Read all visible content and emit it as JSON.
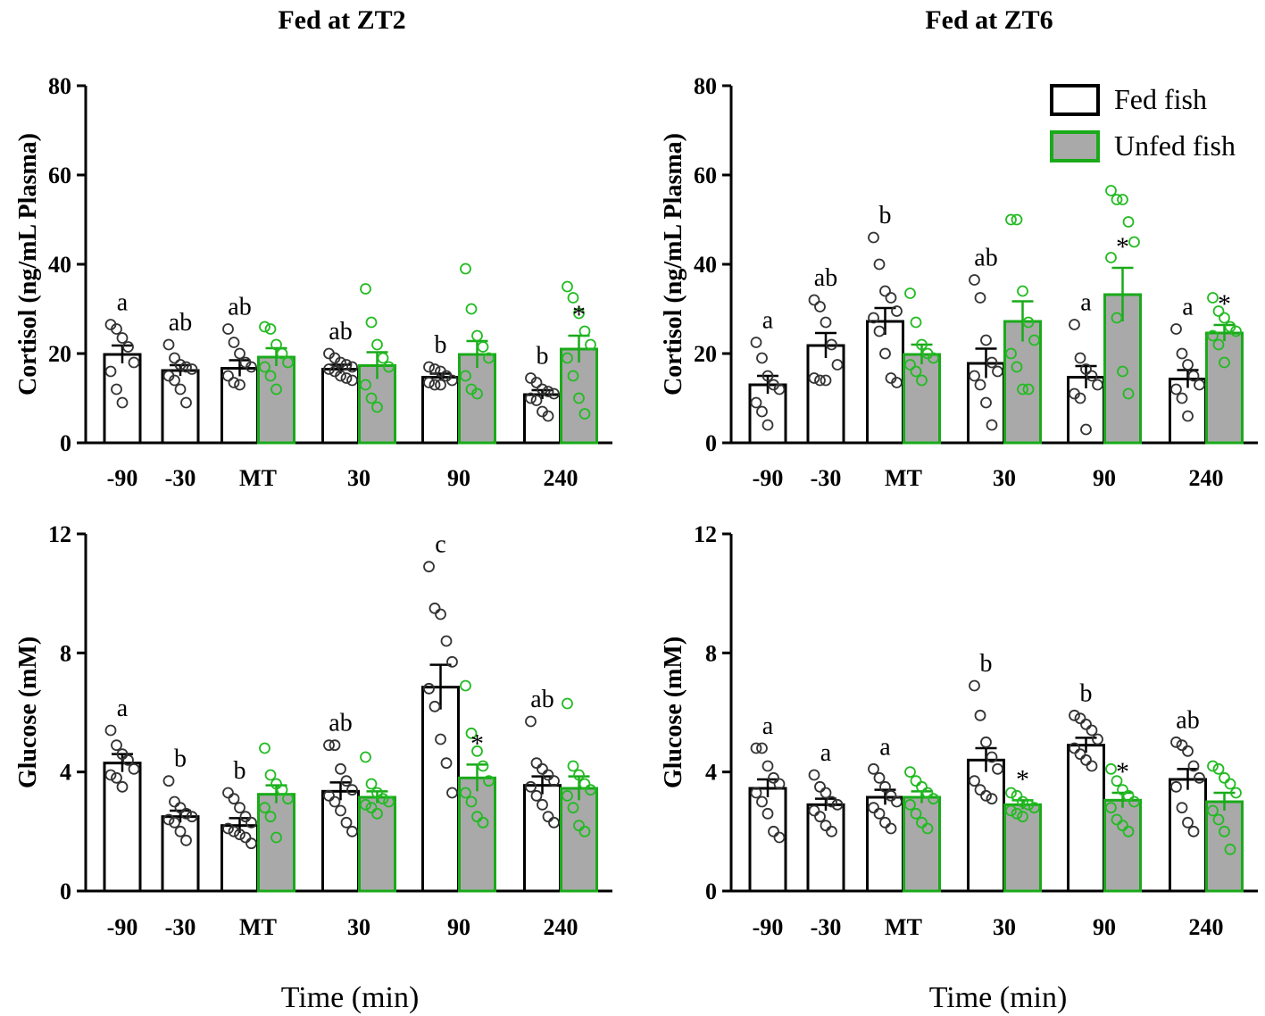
{
  "figure": {
    "xlabel_text": "Time (min)",
    "legend": {
      "fed": "Fed fish",
      "unfed": "Unfed fish"
    },
    "colors": {
      "fed_fill": "#ffffff",
      "unfed_fill": "#a9a9a9",
      "unfed_stroke": "#1aaa1a",
      "fed_stroke": "#000000",
      "unfed_point": "#22bb22"
    }
  },
  "chart_data": [
    {
      "type": "bar",
      "panel": "top-left",
      "title": "Fed at ZT2",
      "ylabel": "Cortisol (ng/mL Plasma)",
      "xlabel": "Time (min)",
      "ylim": [
        0,
        80
      ],
      "yticks": [
        "0",
        "20",
        "40",
        "60",
        "80"
      ],
      "categories": [
        "-90",
        "-30",
        "MT",
        "30",
        "90",
        "240"
      ],
      "series": [
        {
          "name": "Fed fish",
          "values": [
            19.8,
            16.2,
            16.7,
            16.5,
            14.7,
            10.8
          ],
          "sem": [
            2.0,
            1.2,
            1.8,
            1.0,
            0.8,
            1.0
          ],
          "letters": [
            "a",
            "ab",
            "ab",
            "ab",
            "b",
            "b"
          ],
          "points": [
            [
              26.5,
              25.5,
              23.5,
              21.5,
              18,
              16,
              12,
              9
            ],
            [
              22,
              19,
              17.5,
              17,
              16.5,
              15,
              14,
              12,
              9
            ],
            [
              25.5,
              22.5,
              20,
              18,
              17,
              15,
              13.5,
              13
            ],
            [
              20,
              19,
              18,
              17.5,
              17,
              16.5,
              16,
              15,
              14.5,
              14
            ],
            [
              17,
              16.5,
              16,
              15,
              14,
              13.5,
              13,
              13
            ],
            [
              14.5,
              13.5,
              12,
              11.5,
              11,
              10,
              9.5,
              7,
              6
            ]
          ]
        },
        {
          "name": "Unfed fish",
          "values": [
            null,
            null,
            19.2,
            17.3,
            19.8,
            21.0
          ],
          "sem": [
            null,
            null,
            2.0,
            3.0,
            3.0,
            3.0
          ],
          "stars": [
            "",
            "",
            "",
            "",
            "",
            "*"
          ],
          "points": [
            [],
            [],
            [
              26,
              25.5,
              22,
              20,
              18,
              17,
              15,
              12
            ],
            [
              34.5,
              27,
              22,
              19,
              17,
              13,
              10,
              8
            ],
            [
              39,
              30,
              24,
              21.5,
              19,
              15,
              12,
              11
            ],
            [
              35,
              32.5,
              29,
              25,
              22,
              19,
              15,
              10,
              6.5
            ]
          ]
        }
      ]
    },
    {
      "type": "bar",
      "panel": "top-right",
      "title": "Fed at ZT6",
      "ylabel": "Cortisol (ng/mL Plasma)",
      "xlabel": "Time (min)",
      "ylim": [
        0,
        80
      ],
      "yticks": [
        "0",
        "20",
        "40",
        "60",
        "80"
      ],
      "categories": [
        "-90",
        "-30",
        "MT",
        "30",
        "90",
        "240"
      ],
      "series": [
        {
          "name": "Fed fish",
          "values": [
            13.0,
            21.8,
            27.2,
            17.8,
            14.7,
            14.3
          ],
          "sem": [
            2.0,
            2.8,
            3.0,
            3.3,
            2.5,
            2.0
          ],
          "letters": [
            "a",
            "ab",
            "b",
            "ab",
            "a",
            "a"
          ],
          "points": [
            [
              22.5,
              19,
              15,
              13,
              12,
              9,
              7,
              4
            ],
            [
              32,
              30.5,
              27,
              22,
              17.5,
              14.5,
              14,
              14
            ],
            [
              46,
              40,
              34,
              32.5,
              29.5,
              28,
              25,
              20,
              14.5,
              13.5
            ],
            [
              36.5,
              32.5,
              23,
              18,
              16,
              15,
              13,
              9,
              4
            ],
            [
              26.5,
              19,
              16.5,
              15,
              13,
              11,
              10,
              3
            ],
            [
              25.5,
              20,
              17.5,
              15,
              13,
              12,
              10,
              6
            ]
          ]
        },
        {
          "name": "Unfed fish",
          "values": [
            null,
            null,
            19.8,
            27.2,
            33.2,
            24.6
          ],
          "sem": [
            null,
            null,
            2.2,
            4.5,
            6.0,
            1.8
          ],
          "stars": [
            "",
            "",
            "",
            "",
            "*",
            "*"
          ],
          "points": [
            [],
            [],
            [
              33.5,
              27,
              22,
              20,
              19,
              17.5,
              16,
              14
            ],
            [
              50,
              50,
              34,
              27,
              23,
              20,
              17,
              12,
              12
            ],
            [
              56.5,
              54.5,
              54.5,
              49.5,
              45,
              41.5,
              28,
              16,
              11
            ],
            [
              32.5,
              29.5,
              28,
              26,
              25,
              24,
              22,
              18
            ]
          ]
        }
      ]
    },
    {
      "type": "bar",
      "panel": "bottom-left",
      "title": "",
      "ylabel": "Glucose (mM)",
      "xlabel": "Time (min)",
      "ylim": [
        0,
        12
      ],
      "yticks": [
        "0",
        "4",
        "8",
        "12"
      ],
      "categories": [
        "-90",
        "-30",
        "MT",
        "30",
        "90",
        "240"
      ],
      "series": [
        {
          "name": "Fed fish",
          "values": [
            4.3,
            2.5,
            2.2,
            3.35,
            6.85,
            3.55
          ],
          "sem": [
            0.3,
            0.2,
            0.25,
            0.3,
            0.75,
            0.3
          ],
          "letters": [
            "a",
            "b",
            "b",
            "ab",
            "c",
            "ab"
          ],
          "points": [
            [
              5.4,
              4.9,
              4.6,
              4.4,
              4.1,
              3.9,
              3.8,
              3.5
            ],
            [
              3.7,
              3.0,
              2.8,
              2.6,
              2.5,
              2.4,
              2.3,
              2.0,
              1.7
            ],
            [
              3.3,
              3.1,
              2.8,
              2.5,
              2.3,
              2.1,
              2.0,
              1.9,
              1.8,
              1.6
            ],
            [
              4.9,
              4.9,
              4.1,
              3.7,
              3.4,
              3.2,
              3.0,
              2.7,
              2.3,
              2.0
            ],
            [
              10.9,
              9.5,
              9.3,
              8.4,
              7.7,
              6.8,
              6.2,
              5.1,
              4.3,
              3.3
            ],
            [
              5.7,
              4.3,
              4.1,
              3.9,
              3.7,
              3.5,
              3.2,
              2.9,
              2.5,
              2.3
            ]
          ]
        },
        {
          "name": "Unfed fish",
          "values": [
            null,
            null,
            3.25,
            3.15,
            3.8,
            3.45
          ],
          "sem": [
            null,
            null,
            0.3,
            0.2,
            0.45,
            0.4
          ],
          "stars": [
            "",
            "",
            "",
            "",
            "*",
            ""
          ],
          "points": [
            [],
            [],
            [
              4.8,
              3.9,
              3.6,
              3.4,
              3.1,
              2.8,
              2.5,
              1.8
            ],
            [
              4.5,
              3.6,
              3.3,
              3.1,
              3.0,
              2.9,
              2.8,
              2.6
            ],
            [
              6.9,
              5.3,
              4.7,
              4.2,
              3.7,
              3.3,
              3.0,
              2.5,
              2.3
            ],
            [
              6.3,
              4.2,
              3.9,
              3.6,
              3.4,
              3.2,
              2.8,
              2.2,
              2.0
            ]
          ]
        }
      ]
    },
    {
      "type": "bar",
      "panel": "bottom-right",
      "title": "",
      "ylabel": "Glucose (mM)",
      "xlabel": "Time (min)",
      "ylim": [
        0,
        12
      ],
      "yticks": [
        "0",
        "4",
        "8",
        "12"
      ],
      "categories": [
        "-90",
        "-30",
        "MT",
        "30",
        "90",
        "240"
      ],
      "series": [
        {
          "name": "Fed fish",
          "values": [
            3.45,
            2.9,
            3.15,
            4.4,
            4.9,
            3.75
          ],
          "sem": [
            0.3,
            0.2,
            0.25,
            0.4,
            0.25,
            0.35
          ],
          "letters": [
            "a",
            "a",
            "a",
            "b",
            "b",
            "ab"
          ],
          "points": [
            [
              4.8,
              4.8,
              4.2,
              3.8,
              3.6,
              3.3,
              3.0,
              2.6,
              2.0,
              1.8
            ],
            [
              3.9,
              3.5,
              3.3,
              3.0,
              2.9,
              2.7,
              2.5,
              2.2,
              2.0
            ],
            [
              4.1,
              3.8,
              3.5,
              3.2,
              3.0,
              2.8,
              2.6,
              2.3,
              2.1
            ],
            [
              6.9,
              5.9,
              5.0,
              4.5,
              4.1,
              3.7,
              3.4,
              3.2,
              3.1
            ],
            [
              5.9,
              5.8,
              5.6,
              5.4,
              5.1,
              4.8,
              4.6,
              4.4,
              4.2
            ],
            [
              5.0,
              4.9,
              4.7,
              4.2,
              3.8,
              3.5,
              2.8,
              2.3,
              2.0
            ]
          ]
        },
        {
          "name": "Unfed fish",
          "values": [
            null,
            null,
            3.15,
            2.9,
            3.05,
            3.0
          ],
          "sem": [
            null,
            null,
            0.2,
            0.15,
            0.25,
            0.3
          ],
          "stars": [
            "",
            "",
            "",
            "*",
            "*",
            ""
          ],
          "points": [
            [],
            [],
            [
              4.0,
              3.7,
              3.5,
              3.3,
              3.1,
              2.9,
              2.6,
              2.3,
              2.1
            ],
            [
              3.3,
              3.2,
              3.0,
              2.9,
              2.8,
              2.7,
              2.6,
              2.5
            ],
            [
              4.1,
              3.7,
              3.4,
              3.2,
              3.0,
              2.8,
              2.4,
              2.2,
              2.0
            ],
            [
              4.2,
              4.1,
              3.8,
              3.6,
              3.3,
              2.7,
              2.4,
              2.0,
              1.4
            ]
          ]
        }
      ]
    }
  ]
}
